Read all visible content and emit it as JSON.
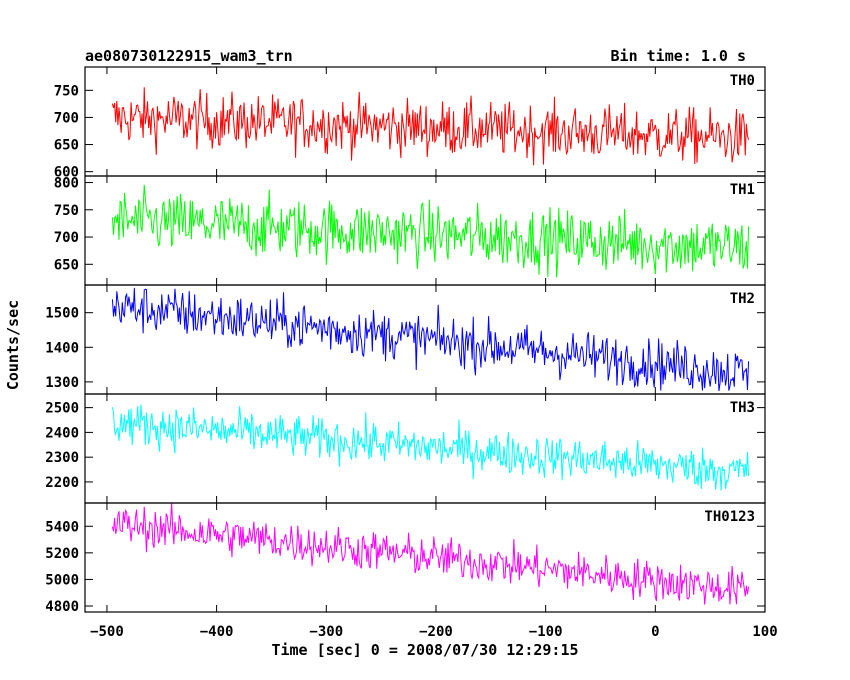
{
  "header": {
    "title": "ae080730122915_wam3_trn",
    "bin_time": "Bin time: 1.0 s"
  },
  "axes": {
    "xlabel": "Time [sec] 0 = 2008/07/30 12:29:15",
    "ylabel": "Counts/sec"
  },
  "chart_data": {
    "type": "line",
    "title": "ae080730122915_wam3_trn",
    "subtitle": "Bin time: 1.0 s",
    "xlabel": "Time [sec] 0 = 2008/07/30 12:29:15",
    "ylabel": "Counts/sec",
    "xlim": [
      -520,
      100
    ],
    "x_ticks": [
      -500,
      -400,
      -300,
      -200,
      -100,
      0,
      100
    ],
    "x_range": [
      -495,
      85
    ],
    "bin_seconds": 1.0,
    "panels": [
      {
        "name": "TH0",
        "color": "#ff0000",
        "ylim": [
          592,
          793
        ],
        "y_ticks": [
          600,
          650,
          700,
          750
        ],
        "trend_start": 700,
        "trend_end": 662,
        "noise_amplitude": 50
      },
      {
        "name": "TH1",
        "color": "#00ff00",
        "ylim": [
          612,
          812
        ],
        "y_ticks": [
          650,
          700,
          750,
          800
        ],
        "trend_start": 730,
        "trend_end": 680,
        "noise_amplitude": 55
      },
      {
        "name": "TH2",
        "color": "#0000ff",
        "ylim": [
          1265,
          1580
        ],
        "y_ticks": [
          1300,
          1400,
          1500
        ],
        "trend_start": 1520,
        "trend_end": 1325,
        "noise_amplitude": 70
      },
      {
        "name": "TH3",
        "color": "#00ffff",
        "ylim": [
          2115,
          2555
        ],
        "y_ticks": [
          2200,
          2300,
          2400,
          2500
        ],
        "trend_start": 2440,
        "trend_end": 2240,
        "noise_amplitude": 85
      },
      {
        "name": "TH0123",
        "color": "#ff00ff",
        "ylim": [
          4755,
          5575
        ],
        "y_ticks": [
          4800,
          5000,
          5200,
          5400
        ],
        "trend_start": 5420,
        "trend_end": 4920,
        "noise_amplitude": 150
      }
    ]
  }
}
